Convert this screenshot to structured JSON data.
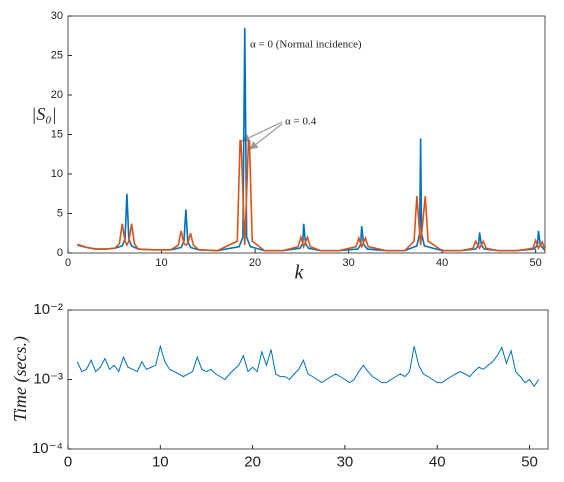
{
  "chart_data": [
    {
      "type": "line",
      "xlabel": "k",
      "ylabel": "|S₀|",
      "annotations": [
        "α = 0  (Normal incidence)",
        "α = 0.4"
      ],
      "xlim": [
        0,
        51
      ],
      "ylim": [
        0,
        30
      ],
      "xticks": [
        0,
        10,
        20,
        30,
        40,
        50
      ],
      "yticks": [
        0,
        5,
        10,
        15,
        20,
        25,
        30
      ],
      "series": [
        {
          "color": "#0072bd",
          "x": [
            1,
            2,
            3,
            4,
            5,
            5.8,
            6.1,
            6.3,
            6.5,
            6.8,
            7.5,
            9,
            11,
            12.1,
            12.4,
            12.6,
            12.8,
            13.1,
            14,
            16,
            18.3,
            18.7,
            18.9,
            19.1,
            19.5,
            21,
            23,
            24.8,
            25.1,
            25.2,
            25.4,
            25.7,
            27,
            29,
            31,
            31.3,
            31.4,
            31.6,
            32,
            34,
            36,
            37.3,
            37.6,
            37.7,
            37.8,
            38.1,
            40,
            42,
            43.6,
            43.9,
            44,
            44.2,
            44.5,
            46,
            48,
            49.8,
            50.2,
            50.3,
            50.5,
            51
          ],
          "values": [
            1,
            0.7,
            0.5,
            0.5,
            0.6,
            0.9,
            1.8,
            7.5,
            1.8,
            0.9,
            0.5,
            0.4,
            0.4,
            0.7,
            1.5,
            5.5,
            1.5,
            0.7,
            0.4,
            0.3,
            0.8,
            2,
            28.5,
            2,
            0.8,
            0.3,
            0.3,
            0.6,
            1.2,
            3.7,
            1.2,
            0.6,
            0.3,
            0.3,
            0.5,
            1.1,
            3.4,
            1.1,
            0.5,
            0.3,
            0.3,
            0.9,
            2.5,
            14.5,
            2.5,
            0.9,
            0.3,
            0.3,
            0.5,
            1,
            2.6,
            1,
            0.5,
            0.3,
            0.3,
            0.5,
            1,
            2.8,
            1,
            0.3
          ]
        },
        {
          "color": "#d95319",
          "x": [
            1,
            2,
            3,
            4,
            5,
            5.5,
            5.8,
            6.1,
            6.3,
            6.5,
            6.8,
            7.1,
            7.5,
            9,
            11,
            11.8,
            12.1,
            12.4,
            12.6,
            12.8,
            13.1,
            13.4,
            14,
            16,
            18.1,
            18.4,
            18.5,
            18.9,
            19.3,
            19.4,
            19.7,
            21,
            23,
            24.6,
            24.9,
            25.2,
            25.6,
            25.9,
            27,
            29,
            30.8,
            31.1,
            31.4,
            31.8,
            32.1,
            34,
            36,
            37,
            37.3,
            37.7,
            38.2,
            38.5,
            40,
            42,
            43.3,
            43.6,
            44,
            44.4,
            44.7,
            46,
            48,
            49.7,
            50,
            50.3,
            50.7,
            51
          ],
          "values": [
            1.1,
            0.7,
            0.5,
            0.5,
            0.6,
            1.2,
            3.7,
            1.5,
            1,
            1.5,
            3.7,
            1.2,
            0.5,
            0.4,
            0.4,
            1,
            2.8,
            1.2,
            1,
            1.2,
            2.5,
            1,
            0.4,
            0.3,
            1.5,
            14.2,
            14.2,
            1,
            14.2,
            14.2,
            1.5,
            0.3,
            0.3,
            0.8,
            2,
            0.8,
            2,
            0.8,
            0.3,
            0.3,
            0.8,
            1.9,
            0.8,
            1.9,
            0.8,
            0.3,
            0.3,
            1.5,
            7.2,
            1,
            7.2,
            1.5,
            0.3,
            0.3,
            0.6,
            1.5,
            0.6,
            1.5,
            0.6,
            0.3,
            0.3,
            0.6,
            1.6,
            0.6,
            1.4,
            0.4
          ]
        }
      ]
    },
    {
      "type": "line",
      "ylabel": "Time (secs.)",
      "yscale": "log",
      "xlim": [
        0,
        52
      ],
      "ylim": [
        0.0001,
        0.01
      ],
      "xticks": [
        0,
        10,
        20,
        30,
        40,
        50
      ],
      "yticks": [
        {
          "value": 0.0001,
          "label": "10⁻⁴"
        },
        {
          "value": 0.001,
          "label": "10⁻³"
        },
        {
          "value": 0.01,
          "label": "10⁻²"
        }
      ],
      "series": [
        {
          "color": "#0072bd",
          "x": [
            1,
            1.5,
            2,
            2.5,
            3,
            3.5,
            4,
            4.5,
            5,
            5.5,
            6,
            6.5,
            7,
            7.5,
            8,
            8.5,
            9,
            9.5,
            10,
            10.5,
            11,
            11.5,
            12,
            12.5,
            13,
            13.5,
            14,
            14.5,
            15,
            15.5,
            16,
            16.5,
            17,
            17.5,
            18,
            18.5,
            19,
            19.5,
            20,
            20.5,
            21,
            21.5,
            22,
            22.5,
            23,
            23.5,
            24,
            24.5,
            25,
            25.5,
            26,
            26.5,
            27,
            27.5,
            28,
            28.5,
            29,
            29.5,
            30,
            30.5,
            31,
            31.5,
            32,
            32.5,
            33,
            33.5,
            34,
            34.5,
            35,
            35.5,
            36,
            36.5,
            37,
            37.5,
            38,
            38.5,
            39,
            39.5,
            40,
            40.5,
            41,
            41.5,
            42,
            42.5,
            43,
            43.5,
            44,
            44.5,
            45,
            45.5,
            46,
            46.5,
            47,
            47.5,
            48,
            48.5,
            49,
            49.5,
            50,
            50.5,
            51
          ],
          "values": [
            0.0018,
            0.0013,
            0.0014,
            0.0019,
            0.0013,
            0.0015,
            0.002,
            0.0014,
            0.0016,
            0.0013,
            0.0021,
            0.0015,
            0.0014,
            0.0013,
            0.0018,
            0.0014,
            0.0015,
            0.0016,
            0.003,
            0.0018,
            0.0014,
            0.0013,
            0.0012,
            0.0011,
            0.0012,
            0.0013,
            0.0021,
            0.0014,
            0.0013,
            0.0014,
            0.0012,
            0.0011,
            0.001,
            0.0012,
            0.0014,
            0.0016,
            0.0022,
            0.0013,
            0.0015,
            0.0013,
            0.0025,
            0.0016,
            0.0027,
            0.0012,
            0.0011,
            0.0011,
            0.001,
            0.0012,
            0.0014,
            0.0019,
            0.0012,
            0.0011,
            0.001,
            0.0009,
            0.001,
            0.0011,
            0.0012,
            0.0011,
            0.001,
            0.0009,
            0.001,
            0.0013,
            0.0016,
            0.0013,
            0.0011,
            0.001,
            0.0009,
            0.0009,
            0.001,
            0.0011,
            0.0012,
            0.0011,
            0.0013,
            0.003,
            0.0016,
            0.0012,
            0.0011,
            0.001,
            0.0009,
            0.0009,
            0.001,
            0.0011,
            0.0012,
            0.0013,
            0.0012,
            0.0011,
            0.0013,
            0.0015,
            0.0014,
            0.0016,
            0.0018,
            0.0022,
            0.0029,
            0.0017,
            0.0026,
            0.0013,
            0.0011,
            0.0009,
            0.001,
            0.0008,
            0.001
          ]
        }
      ]
    }
  ]
}
